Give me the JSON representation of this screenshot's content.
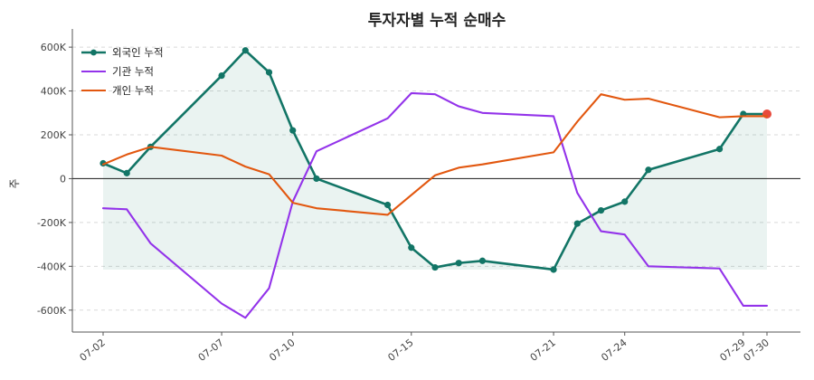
{
  "chart_data": {
    "type": "line",
    "title": "투자자별 누적 순매수",
    "xlabel": "",
    "ylabel": "주",
    "x": [
      "07-02",
      "07-03",
      "07-04",
      "07-07",
      "07-08",
      "07-09",
      "07-10",
      "07-11",
      "07-14",
      "07-15",
      "07-16",
      "07-17",
      "07-18",
      "07-21",
      "07-22",
      "07-23",
      "07-24",
      "07-25",
      "07-28",
      "07-29",
      "07-30"
    ],
    "xticks": [
      "07-02",
      "07-07",
      "07-10",
      "07-15",
      "07-21",
      "07-24",
      "07-29",
      "07-30"
    ],
    "ylim": [
      -700000,
      650000
    ],
    "yticks": [
      -600000,
      -400000,
      -200000,
      0,
      200000,
      400000,
      600000
    ],
    "ytick_labels": [
      "-600K",
      "-400K",
      "-200K",
      "0",
      "200K",
      "400K",
      "600K"
    ],
    "grid": "horizontal",
    "legend": "top-left",
    "series": [
      {
        "name": "외국인 누적",
        "color": "#127566",
        "markers": true,
        "fill": true,
        "values": [
          70000,
          25000,
          145000,
          470000,
          585000,
          485000,
          220000,
          0,
          -120000,
          -315000,
          -405000,
          -385000,
          -375000,
          -415000,
          -205000,
          -145000,
          -105000,
          40000,
          135000,
          295000,
          295000
        ]
      },
      {
        "name": "기관 누적",
        "color": "#9333ea",
        "markers": false,
        "fill": false,
        "values": [
          -135000,
          -140000,
          -295000,
          -570000,
          -635000,
          -500000,
          -105000,
          125000,
          275000,
          390000,
          385000,
          330000,
          300000,
          285000,
          -65000,
          -240000,
          -255000,
          -400000,
          -410000,
          -580000,
          -580000
        ]
      },
      {
        "name": "개인 누적",
        "color": "#e2570f",
        "markers": false,
        "fill": false,
        "values": [
          65000,
          110000,
          145000,
          105000,
          55000,
          20000,
          -110000,
          -135000,
          -165000,
          -75000,
          15000,
          50000,
          65000,
          120000,
          260000,
          385000,
          360000,
          365000,
          280000,
          285000,
          285000
        ]
      }
    ],
    "highlight_color": "#e84a3d"
  }
}
